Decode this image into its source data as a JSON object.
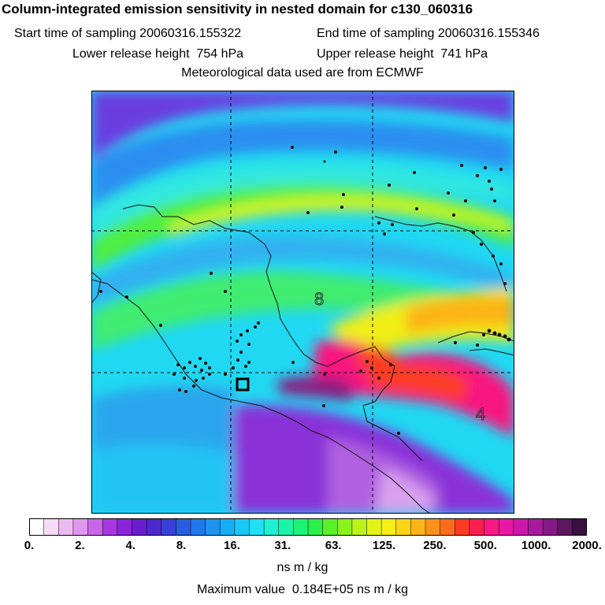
{
  "header": {
    "title": "Column-integrated emission sensitivity in nested domain for c130_060316",
    "start_label": "Start time of sampling 20060316.155322",
    "end_label": "End time of sampling 20060316.155346",
    "lower_label": "Lower release height  754 hPa",
    "upper_label": "Upper release height  741 hPa",
    "met_label": "Meteorological data used are from ECMWF"
  },
  "map": {
    "contour_labels": [
      "8",
      "4"
    ],
    "release_marker": "square-box",
    "grid": true
  },
  "colorbar": {
    "tick_labels": [
      "0.",
      "2.",
      "4.",
      "8.",
      "16.",
      "31.",
      "63.",
      "125.",
      "250.",
      "500.",
      "1000.",
      "2000."
    ],
    "colors": [
      "#ffffff",
      "#f6dcf6",
      "#ecbaf2",
      "#e096ee",
      "#c866e8",
      "#a838e0",
      "#8a24d8",
      "#6a1ed0",
      "#4d28cc",
      "#3840d6",
      "#2a5ce0",
      "#2078ea",
      "#1c94f0",
      "#18aef6",
      "#1ac8f8",
      "#20e0f4",
      "#1ef0d4",
      "#1cf4a6",
      "#1ef278",
      "#2cf04a",
      "#5af02a",
      "#8cf21c",
      "#baf41a",
      "#e0f418",
      "#f8ee18",
      "#fcd418",
      "#fcb41a",
      "#fc921c",
      "#fc6c1e",
      "#fc3c24",
      "#fc1e50",
      "#f81880",
      "#e818a4",
      "#cc18aa",
      "#a81a9c",
      "#841a84",
      "#5c1660",
      "#3a1040"
    ],
    "units": "ns m / kg",
    "max_value": "Maximum value  0.184E+05 ns m / kg"
  }
}
